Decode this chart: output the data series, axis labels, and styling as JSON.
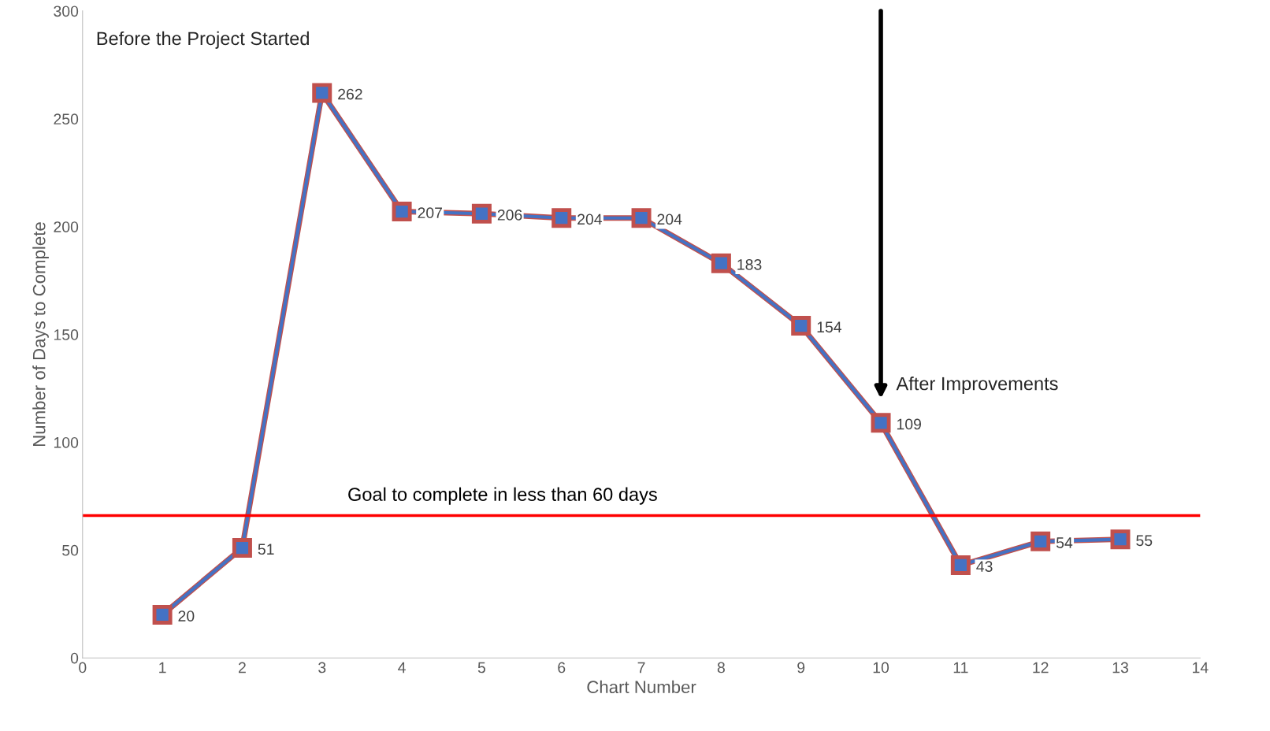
{
  "chart_data": {
    "type": "line",
    "xlabel": "Chart Number",
    "ylabel": "Number of Days to Complete",
    "x": [
      1,
      2,
      3,
      4,
      5,
      6,
      7,
      8,
      9,
      10,
      11,
      12,
      13
    ],
    "series": [
      {
        "color": "#4472c4",
        "values": [
          20,
          51,
          262,
          207,
          206,
          204,
          204,
          183,
          154,
          109,
          43,
          54,
          55
        ]
      }
    ],
    "marker": "square",
    "line_style": "solid",
    "data_labels": true,
    "grid": false,
    "xlim": [
      0,
      14
    ],
    "xticks": [
      0,
      1,
      2,
      3,
      4,
      5,
      6,
      7,
      8,
      9,
      10,
      11,
      12,
      13,
      14
    ],
    "ylim": [
      0,
      300
    ],
    "yticks": [
      0,
      50,
      100,
      150,
      200,
      250,
      300
    ],
    "ref_lines": [
      {
        "axis": "y",
        "value": 66,
        "label": "Goal to complete in less than 60 days",
        "color": "#ff0000"
      }
    ],
    "annotations": [
      "Before the Project Started",
      {
        "text": "After Improvements",
        "x": 10,
        "y": 109
      }
    ]
  }
}
